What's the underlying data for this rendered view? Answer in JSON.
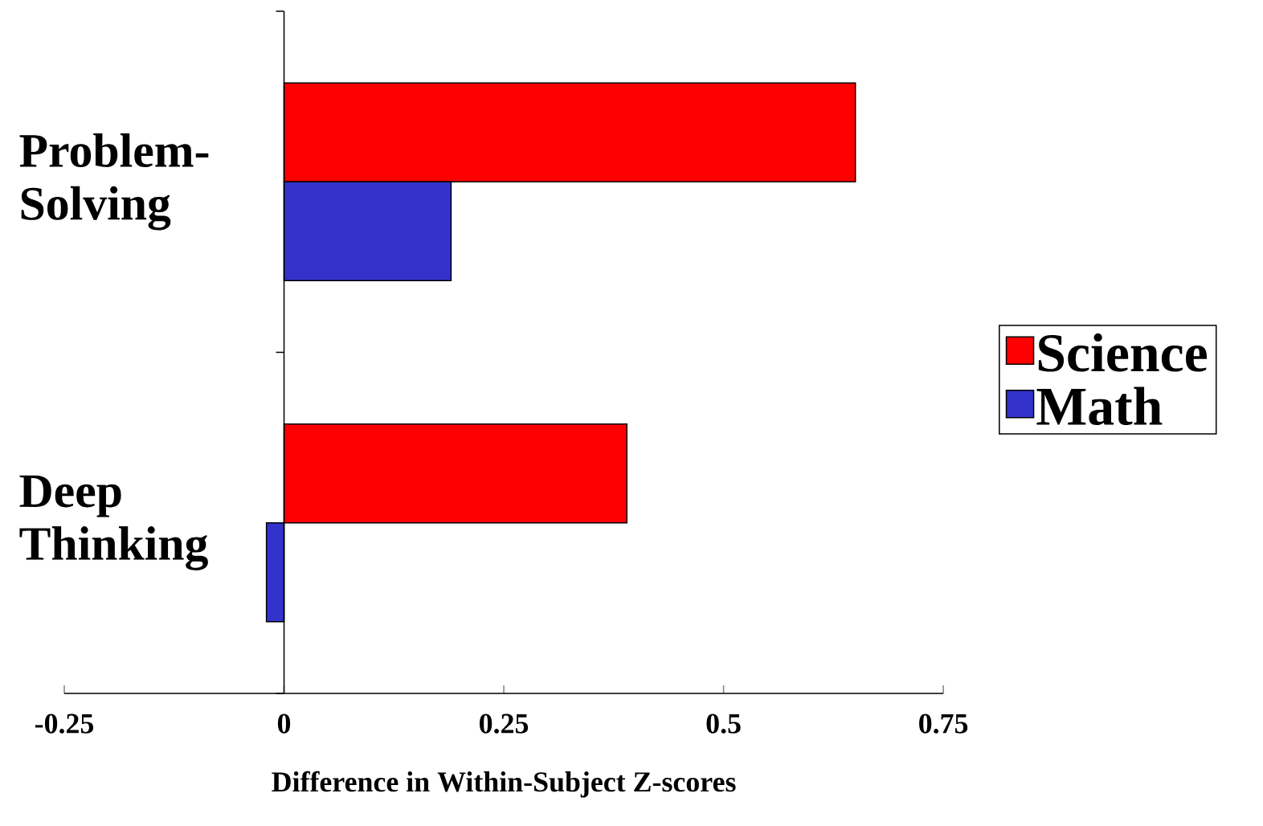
{
  "chart_data": {
    "type": "bar",
    "orientation": "horizontal",
    "xlabel": "Difference in Within-Subject Z-scores",
    "categories": [
      "Problem-Solving",
      "Deep Thinking"
    ],
    "series": [
      {
        "name": "Science",
        "color": "#ff0000",
        "values": [
          0.65,
          0.39
        ]
      },
      {
        "name": "Math",
        "color": "#3333cc",
        "values": [
          0.19,
          -0.02
        ]
      }
    ],
    "xlim": [
      -0.25,
      0.75
    ],
    "xticks": [
      -0.25,
      0,
      0.25,
      0.5,
      0.75
    ],
    "legend": "right"
  }
}
